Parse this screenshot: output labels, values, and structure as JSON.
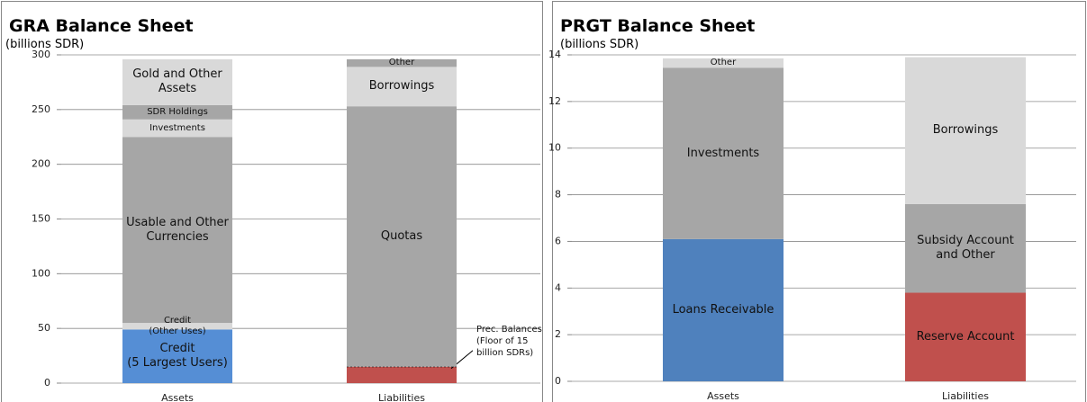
{
  "chart_data": [
    {
      "type": "stacked_bar",
      "title": "GRA Balance Sheet",
      "subtitle": "(billions SDR)",
      "categories": [
        "Assets",
        "Liabilities"
      ],
      "ylim": [
        0,
        300
      ],
      "yticks": [
        0,
        50,
        100,
        150,
        200,
        250,
        300
      ],
      "grid": true,
      "series": [
        {
          "name": "Credit\n(5 Largest Users)",
          "color": "#558ed5",
          "values": [
            49,
            null
          ]
        },
        {
          "name": "Credit\n(Other Uses)",
          "color": "#d9d9d9",
          "values": [
            6,
            null
          ]
        },
        {
          "name": "Usable and Other\nCurrencies",
          "color": "#a6a6a6",
          "values": [
            170,
            null
          ]
        },
        {
          "name": "Investments",
          "color": "#d9d9d9",
          "values": [
            16,
            null
          ]
        },
        {
          "name": "SDR Holdings",
          "color": "#a6a6a6",
          "values": [
            13,
            null
          ]
        },
        {
          "name": "Gold and Other\nAssets",
          "color": "#d9d9d9",
          "values": [
            42,
            null
          ]
        },
        {
          "name": "Prec. Balances\n(Floor of 15\nbillion SDRs)",
          "color": "#c0504d",
          "values": [
            null,
            15
          ],
          "label_position": "outside"
        },
        {
          "name": "Quotas",
          "color": "#a6a6a6",
          "values": [
            null,
            238
          ]
        },
        {
          "name": "Borrowings",
          "color": "#d9d9d9",
          "values": [
            null,
            36
          ]
        },
        {
          "name": "Other",
          "color": "#a6a6a6",
          "values": [
            null,
            7
          ]
        }
      ]
    },
    {
      "type": "stacked_bar",
      "title": "PRGT Balance Sheet",
      "subtitle": "(billions SDR)",
      "categories": [
        "Assets",
        "Liabilities"
      ],
      "ylim": [
        0,
        14
      ],
      "yticks": [
        0,
        2,
        4,
        6,
        8,
        10,
        12,
        14
      ],
      "grid": true,
      "series": [
        {
          "name": "Loans Receivable",
          "color": "#4f81bd",
          "values": [
            6.1,
            null
          ]
        },
        {
          "name": "Investments",
          "color": "#a6a6a6",
          "values": [
            7.35,
            null
          ]
        },
        {
          "name": "Other",
          "color": "#d9d9d9",
          "values": [
            0.4,
            null
          ]
        },
        {
          "name": "Reserve Account",
          "color": "#c0504d",
          "values": [
            null,
            3.8
          ]
        },
        {
          "name": "Subsidy Account\nand Other",
          "color": "#a6a6a6",
          "values": [
            null,
            3.8
          ]
        },
        {
          "name": "Borrowings",
          "color": "#d9d9d9",
          "values": [
            null,
            6.3
          ]
        }
      ]
    }
  ]
}
